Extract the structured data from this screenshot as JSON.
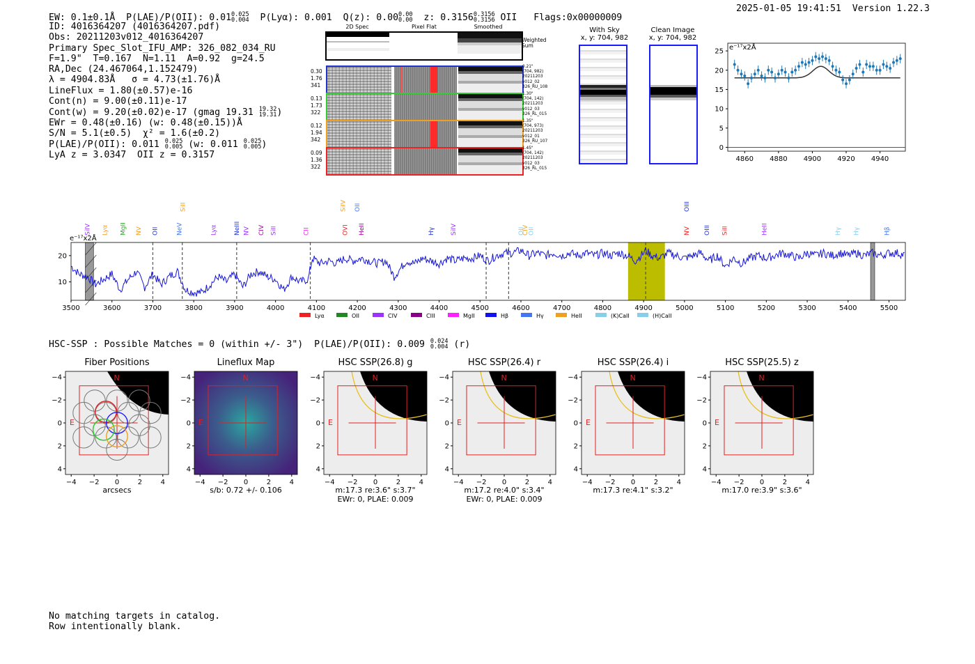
{
  "header": {
    "ew": "EW: 0.1±0.1Å",
    "plae_label": "P(LAE)/P(OII): 0.01",
    "plae_hi": "0.025",
    "plae_lo": "0.004",
    "plya": "P(Lyα): 0.001",
    "qz_label": "Q(z): 0.00",
    "qz_hi": "0.00",
    "qz_lo": "0.00",
    "z_label": "z: 0.3156",
    "z_hi": "0.3156",
    "z_lo": "0.3156",
    "z_line": "OII",
    "flags": "Flags:0x00000009",
    "timestamp": "2025-01-05 19:41:51",
    "version": "Version 1.22.3"
  },
  "info": {
    "id": "ID: 4016364207 (4016364207.pdf)",
    "obs": "Obs: 20211203v012_4016364207",
    "primary": "Primary Spec_Slot_IFU_AMP: 326_082_034_RU",
    "params": "F=1.9\"  T=0.167  N=1.11  A=0.92  g=24.5",
    "radec": "RA,Dec (24.467064,1.152479)",
    "lambda": "λ = 4904.83Å   σ = 4.73(±1.76)Å",
    "lineflux": "LineFlux = 1.80(±0.57)e-16",
    "contn": "Cont(n) = 9.00(±0.11)e-17",
    "contw": "Cont(w) = 9.20(±0.02)e-17 (gmag 19.31",
    "contw_hi": "19.32",
    "contw_lo": "19.31",
    "contw_end": ")",
    "ewr": "EWr = 0.48(±0.16) (w: 0.48(±0.15))Å",
    "sn": "S/N = 5.1(±0.5)  χ² = 1.6(±0.2)",
    "plae": "P(LAE)/P(OII): 0.011",
    "plae_hi": "0.025",
    "plae_lo": "0.005",
    "plae_w": "(w: 0.011",
    "plae_w_hi": "0.025",
    "plae_w_lo": "0.005",
    "plae_w_end": ")",
    "lyaz": "LyA z = 3.0347  OII z = 0.3157"
  },
  "cutouts": {
    "col_headers": [
      "2D Spec",
      "Pixel Flat",
      "Smoothed"
    ],
    "weighted_label": "Weighted\nSum",
    "rows": [
      {
        "left": "0.30\n1.76\n341",
        "right": "0.21\"\n(704, 982)\n20211203\nv012_02\n326_RU_108",
        "color": "#2233cc"
      },
      {
        "left": "0.13\n1.73\n322",
        "right": "1.30\"\n(704, 142)\n20211203\nv012_03\n326_RL_015",
        "color": "#33cc33"
      },
      {
        "left": "0.12\n1.94\n342",
        "right": "1.35\"\n(704, 973)\n20211203\nv012_01\n326_RU_107",
        "color": "#f0a020"
      },
      {
        "left": "0.09\n1.36\n322",
        "right": "1.45\"\n(704, 142)\n20211203\nv012_03\n326_RL_015",
        "color": "#ee2222"
      }
    ]
  },
  "sky": {
    "with_sky_title": "With Sky",
    "with_sky_coords": "x, y: 704, 982",
    "clean_title": "Clean Image",
    "clean_coords": "x, y: 704, 982"
  },
  "zoom_chart": {
    "unit_label": "e⁻¹⁷x2Å",
    "xticks": [
      "4860",
      "4880",
      "4900",
      "4920",
      "4940"
    ],
    "yticks": [
      "0",
      "5",
      "10",
      "15",
      "20",
      "25"
    ]
  },
  "spectrum": {
    "unit_label": "e⁻¹⁷x2Å",
    "xticks": [
      "3500",
      "3600",
      "3700",
      "3800",
      "3900",
      "4000",
      "4100",
      "4200",
      "4300",
      "4400",
      "4500",
      "4600",
      "4700",
      "4800",
      "4900",
      "5000",
      "5100",
      "5200",
      "5300",
      "5400",
      "5500"
    ],
    "yticks": [
      "10",
      "20"
    ],
    "line_labels": [
      {
        "text": "SiIV",
        "color": "#9933ff",
        "x": 3540,
        "row": 0
      },
      {
        "text": "Lyα",
        "color": "#f0a020",
        "x": 3583,
        "row": 0
      },
      {
        "text": "MgII",
        "color": "#22aa22",
        "x": 3627,
        "row": 0
      },
      {
        "text": "NV",
        "color": "#f0a020",
        "x": 3665,
        "row": 0
      },
      {
        "text": "OII",
        "color": "#2233cc",
        "x": 3705,
        "row": 0
      },
      {
        "text": "NeV",
        "color": "#4477ee",
        "x": 3765,
        "row": 0
      },
      {
        "text": "SiII",
        "color": "#f0a020",
        "x": 3773,
        "row": 1
      },
      {
        "text": "Lyα",
        "color": "#9933ff",
        "x": 3848,
        "row": 0
      },
      {
        "text": "NeIII",
        "color": "#2233cc",
        "x": 3905,
        "row": 0
      },
      {
        "text": "NV",
        "color": "#9933ff",
        "x": 3928,
        "row": 0
      },
      {
        "text": "CIV",
        "color": "#990099",
        "x": 3965,
        "row": 0
      },
      {
        "text": "SiII",
        "color": "#9933ff",
        "x": 3995,
        "row": 0
      },
      {
        "text": "CII",
        "color": "#ee22ee",
        "x": 4075,
        "row": 0
      },
      {
        "text": "SiIV",
        "color": "#f0a020",
        "x": 4165,
        "row": 1
      },
      {
        "text": "OII",
        "color": "#4477ee",
        "x": 4200,
        "row": 1
      },
      {
        "text": "OVI",
        "color": "#ee2222",
        "x": 4170,
        "row": 0
      },
      {
        "text": "HeII",
        "color": "#990099",
        "x": 4210,
        "row": 0
      },
      {
        "text": "Hγ",
        "color": "#2233cc",
        "x": 4380,
        "row": 0
      },
      {
        "text": "SiIV",
        "color": "#9933ff",
        "x": 4435,
        "row": 0
      },
      {
        "text": "OII",
        "color": "#87ceeb",
        "x": 4600,
        "row": 0
      },
      {
        "text": "CIV",
        "color": "#f0a020",
        "x": 4610,
        "row": 0
      },
      {
        "text": "OII",
        "color": "#87ceeb",
        "x": 4625,
        "row": 0
      },
      {
        "text": "OIII",
        "color": "#2233cc",
        "x": 5005,
        "row": 1
      },
      {
        "text": "NV",
        "color": "#ee2222",
        "x": 5005,
        "row": 0
      },
      {
        "text": "OIII",
        "color": "#2233cc",
        "x": 5055,
        "row": 0
      },
      {
        "text": "SiII",
        "color": "#ee2222",
        "x": 5098,
        "row": 0
      },
      {
        "text": "HeII",
        "color": "#9933ff",
        "x": 5195,
        "row": 0
      },
      {
        "text": "Hγ",
        "color": "#87ceeb",
        "x": 5375,
        "row": 0
      },
      {
        "text": "Hγ",
        "color": "#87ceeb",
        "x": 5420,
        "row": 0
      },
      {
        "text": "Hβ",
        "color": "#4477ee",
        "x": 5495,
        "row": 0
      }
    ],
    "legend": [
      {
        "label": "Lyα",
        "color": "#ee2222"
      },
      {
        "label": "OII",
        "color": "#228822"
      },
      {
        "label": "CIV",
        "color": "#9933ff"
      },
      {
        "label": "CIII",
        "color": "#880088"
      },
      {
        "label": "MgII",
        "color": "#ff22ff"
      },
      {
        "label": "Hβ",
        "color": "#1111ee"
      },
      {
        "label": "Hγ",
        "color": "#4477ee"
      },
      {
        "label": "HeII",
        "color": "#f0a020"
      },
      {
        "label": "(K)CaII",
        "color": "#87ceeb"
      },
      {
        "label": "(H)CaII",
        "color": "#87ceeb"
      }
    ]
  },
  "hsc_line": {
    "text": "HSC-SSP : Possible Matches = 0 (within +/- 3\")  P(LAE)/P(OII): 0.009",
    "hi": "0.024",
    "lo": "0.004",
    "end": " (r)"
  },
  "panels": [
    {
      "title": "Fiber Positions",
      "sub1": "arcsecs",
      "sub2": ""
    },
    {
      "title": "Lineflux Map",
      "sub1": "s/b: 0.72 +/- 0.106",
      "sub2": ""
    },
    {
      "title": "HSC SSP(26.8) g",
      "sub1": "m:17.3  re:3.6\"  s:3.7\"",
      "sub2": "EWr: 0, PLAE: 0.009"
    },
    {
      "title": "HSC SSP(26.4) r",
      "sub1": "m:17.2  re:4.0\"  s:3.4\"",
      "sub2": "EWr: 0, PLAE: 0.009"
    },
    {
      "title": "HSC SSP(26.4) i",
      "sub1": "m:17.3  re:4.1\"  s:3.2\"",
      "sub2": ""
    },
    {
      "title": "HSC SSP(25.5) z",
      "sub1": "m:17.0  re:3.9\"  s:3.6\"",
      "sub2": ""
    }
  ],
  "panel_axes": {
    "xticks": [
      "−4",
      "−2",
      "0",
      "2",
      "4"
    ],
    "yticks": [
      "4",
      "2",
      "0",
      "−2",
      "−4"
    ],
    "n_label": "N",
    "e_label": "E"
  },
  "footer": {
    "line1": "No matching targets in catalog.",
    "line2": "Row intentionally blank."
  },
  "chart_data": [
    {
      "type": "scatter",
      "xlim": [
        4850,
        4955
      ],
      "ylim": [
        -1,
        27
      ],
      "x": [
        4854,
        4856,
        4858,
        4860,
        4862,
        4864,
        4866,
        4868,
        4870,
        4872,
        4874,
        4876,
        4878,
        4880,
        4882,
        4884,
        4886,
        4888,
        4890,
        4892,
        4894,
        4896,
        4898,
        4900,
        4902,
        4904,
        4906,
        4908,
        4910,
        4912,
        4914,
        4916,
        4918,
        4920,
        4922,
        4924,
        4926,
        4928,
        4930,
        4932,
        4934,
        4936,
        4938,
        4940,
        4942,
        4944,
        4946,
        4948,
        4950,
        4952
      ],
      "y": [
        21.5,
        20,
        19,
        18.5,
        16.5,
        18,
        19,
        20,
        18.5,
        18,
        20,
        19.5,
        18,
        19,
        20,
        19.5,
        18,
        19.5,
        20,
        21,
        22,
        21.5,
        22,
        22.5,
        23.5,
        23,
        23.5,
        23,
        22.5,
        21,
        20,
        19.5,
        17.5,
        16.5,
        17.5,
        19,
        20.5,
        21.5,
        19.5,
        21.5,
        21,
        21,
        20,
        20,
        21.5,
        21,
        20.5,
        22,
        22.5,
        23
      ],
      "model": {
        "continuum": 18.0,
        "peak": 21.0,
        "center": 4905,
        "sigma": 4.73
      }
    },
    {
      "type": "line",
      "xlim": [
        3500,
        5540
      ],
      "ylim": [
        3,
        25
      ],
      "masked_regions": [
        [
          3535,
          3555
        ],
        [
          5455,
          5465
        ]
      ],
      "highlight_region": [
        4862,
        4952
      ],
      "dashed_lines": [
        3700,
        3772,
        3905,
        4085,
        4515,
        4570,
        4905
      ],
      "series_points": [
        [
          3500,
          16
        ],
        [
          3520,
          13
        ],
        [
          3540,
          12
        ],
        [
          3560,
          9
        ],
        [
          3580,
          11
        ],
        [
          3600,
          13
        ],
        [
          3620,
          7
        ],
        [
          3640,
          11
        ],
        [
          3660,
          14
        ],
        [
          3680,
          8
        ],
        [
          3700,
          13
        ],
        [
          3720,
          9
        ],
        [
          3740,
          12
        ],
        [
          3760,
          14
        ],
        [
          3780,
          7
        ],
        [
          3800,
          6
        ],
        [
          3820,
          6
        ],
        [
          3840,
          9
        ],
        [
          3860,
          12
        ],
        [
          3880,
          10
        ],
        [
          3900,
          13
        ],
        [
          3920,
          8
        ],
        [
          3940,
          13
        ],
        [
          3960,
          14
        ],
        [
          3980,
          12
        ],
        [
          4000,
          11
        ],
        [
          4020,
          7
        ],
        [
          4040,
          12
        ],
        [
          4060,
          10
        ],
        [
          4080,
          11
        ],
        [
          4090,
          19
        ],
        [
          4110,
          17
        ],
        [
          4130,
          18
        ],
        [
          4150,
          17
        ],
        [
          4170,
          19
        ],
        [
          4190,
          18
        ],
        [
          4210,
          19
        ],
        [
          4230,
          18
        ],
        [
          4250,
          17
        ],
        [
          4270,
          18
        ],
        [
          4290,
          12
        ],
        [
          4300,
          14
        ],
        [
          4320,
          18
        ],
        [
          4340,
          17
        ],
        [
          4360,
          19
        ],
        [
          4380,
          18
        ],
        [
          4400,
          17
        ],
        [
          4420,
          19
        ],
        [
          4440,
          18
        ],
        [
          4460,
          19
        ],
        [
          4480,
          19
        ],
        [
          4500,
          20
        ],
        [
          4520,
          18
        ],
        [
          4540,
          20
        ],
        [
          4560,
          21
        ],
        [
          4580,
          21
        ],
        [
          4600,
          22
        ],
        [
          4620,
          20
        ],
        [
          4640,
          21
        ],
        [
          4660,
          20
        ],
        [
          4680,
          21
        ],
        [
          4700,
          20
        ],
        [
          4720,
          21
        ],
        [
          4740,
          20
        ],
        [
          4760,
          21
        ],
        [
          4780,
          20
        ],
        [
          4800,
          21
        ],
        [
          4820,
          20
        ],
        [
          4840,
          21
        ],
        [
          4860,
          20
        ],
        [
          4880,
          18
        ],
        [
          4900,
          21
        ],
        [
          4905,
          22
        ],
        [
          4920,
          20
        ],
        [
          4940,
          19
        ],
        [
          4960,
          21
        ],
        [
          4980,
          20
        ],
        [
          5000,
          19
        ],
        [
          5020,
          20
        ],
        [
          5040,
          21
        ],
        [
          5060,
          18
        ],
        [
          5080,
          20
        ],
        [
          5100,
          16
        ],
        [
          5120,
          19
        ],
        [
          5140,
          17
        ],
        [
          5160,
          19
        ],
        [
          5180,
          20
        ],
        [
          5200,
          19
        ],
        [
          5220,
          20
        ],
        [
          5240,
          21
        ],
        [
          5260,
          20
        ],
        [
          5280,
          19
        ],
        [
          5300,
          21
        ],
        [
          5320,
          20
        ],
        [
          5340,
          21
        ],
        [
          5360,
          20
        ],
        [
          5380,
          21
        ],
        [
          5400,
          20
        ],
        [
          5420,
          21
        ],
        [
          5440,
          20
        ],
        [
          5460,
          21
        ],
        [
          5480,
          20
        ],
        [
          5500,
          21
        ],
        [
          5520,
          21
        ],
        [
          5540,
          20
        ]
      ]
    }
  ]
}
